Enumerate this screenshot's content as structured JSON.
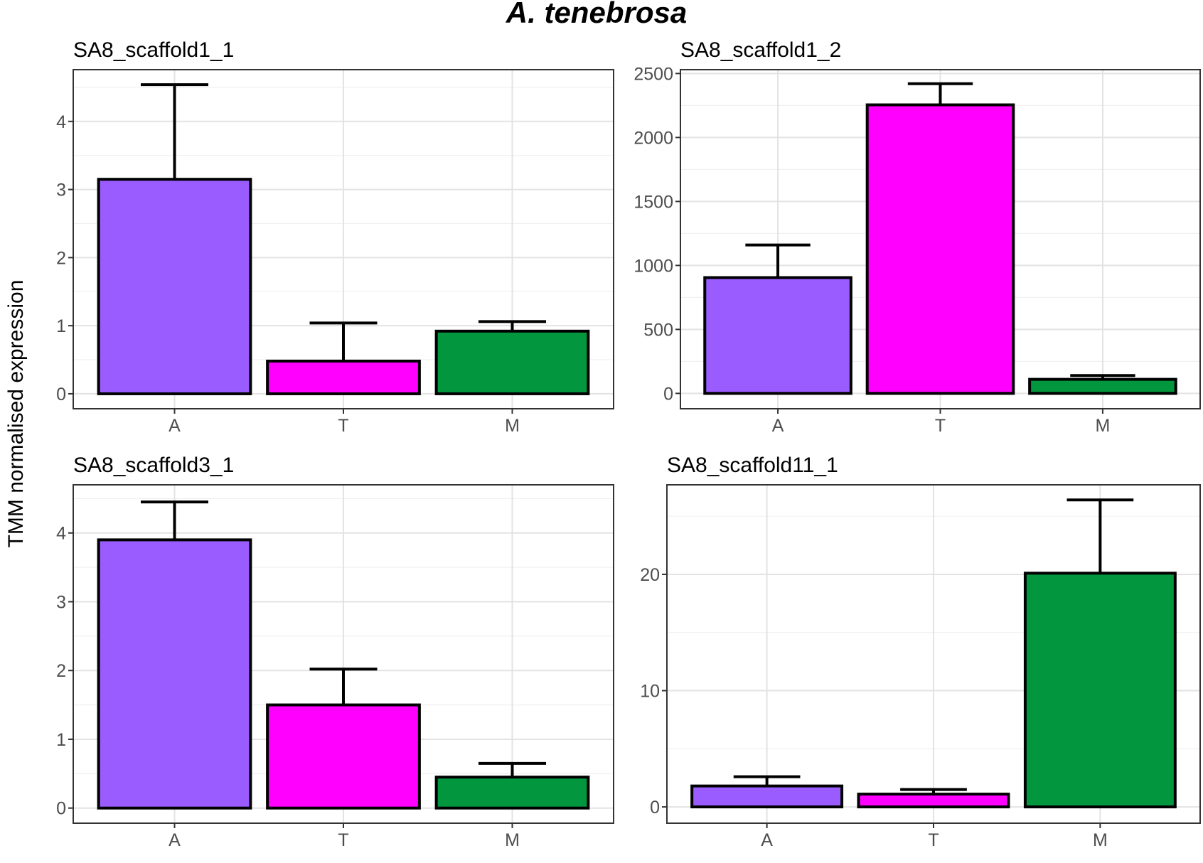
{
  "title": "A. tenebrosa",
  "ylabel": "TMM normalised expression",
  "colors": {
    "A": "#9b5cff",
    "T": "#ff00ff",
    "M": "#02963e"
  },
  "chart_data": [
    {
      "type": "bar",
      "title": "SA8_scaffold1_1",
      "categories": [
        "A",
        "T",
        "M"
      ],
      "values": [
        3.15,
        0.48,
        0.92
      ],
      "error_upper": [
        4.54,
        1.04,
        1.06
      ],
      "ylim": [
        -0.22,
        4.76
      ],
      "yticks": [
        0,
        1,
        2,
        3,
        4
      ],
      "ytick_labels": [
        "0",
        "1",
        "2",
        "3",
        "4"
      ]
    },
    {
      "type": "bar",
      "title": "SA8_scaffold1_2",
      "categories": [
        "A",
        "T",
        "M"
      ],
      "values": [
        905,
        2255,
        110
      ],
      "error_upper": [
        1160,
        2420,
        140
      ],
      "ylim": [
        -120,
        2530
      ],
      "yticks": [
        0,
        500,
        1000,
        1500,
        2000,
        2500
      ],
      "ytick_labels": [
        "0",
        "500",
        "1000",
        "1500",
        "2000",
        "2500"
      ]
    },
    {
      "type": "bar",
      "title": "SA8_scaffold3_1",
      "categories": [
        "A",
        "T",
        "M"
      ],
      "values": [
        3.9,
        1.5,
        0.45
      ],
      "error_upper": [
        4.45,
        2.02,
        0.65
      ],
      "ylim": [
        -0.22,
        4.7
      ],
      "yticks": [
        0,
        1,
        2,
        3,
        4
      ],
      "ytick_labels": [
        "0",
        "1",
        "2",
        "3",
        "4"
      ]
    },
    {
      "type": "bar",
      "title": "SA8_scaffold11_1",
      "categories": [
        "A",
        "T",
        "M"
      ],
      "values": [
        1.8,
        1.1,
        20.1
      ],
      "error_upper": [
        2.6,
        1.5,
        26.4
      ],
      "ylim": [
        -1.4,
        27.7
      ],
      "yticks": [
        0,
        10,
        20
      ],
      "ytick_labels": [
        "0",
        "10",
        "20"
      ]
    }
  ]
}
